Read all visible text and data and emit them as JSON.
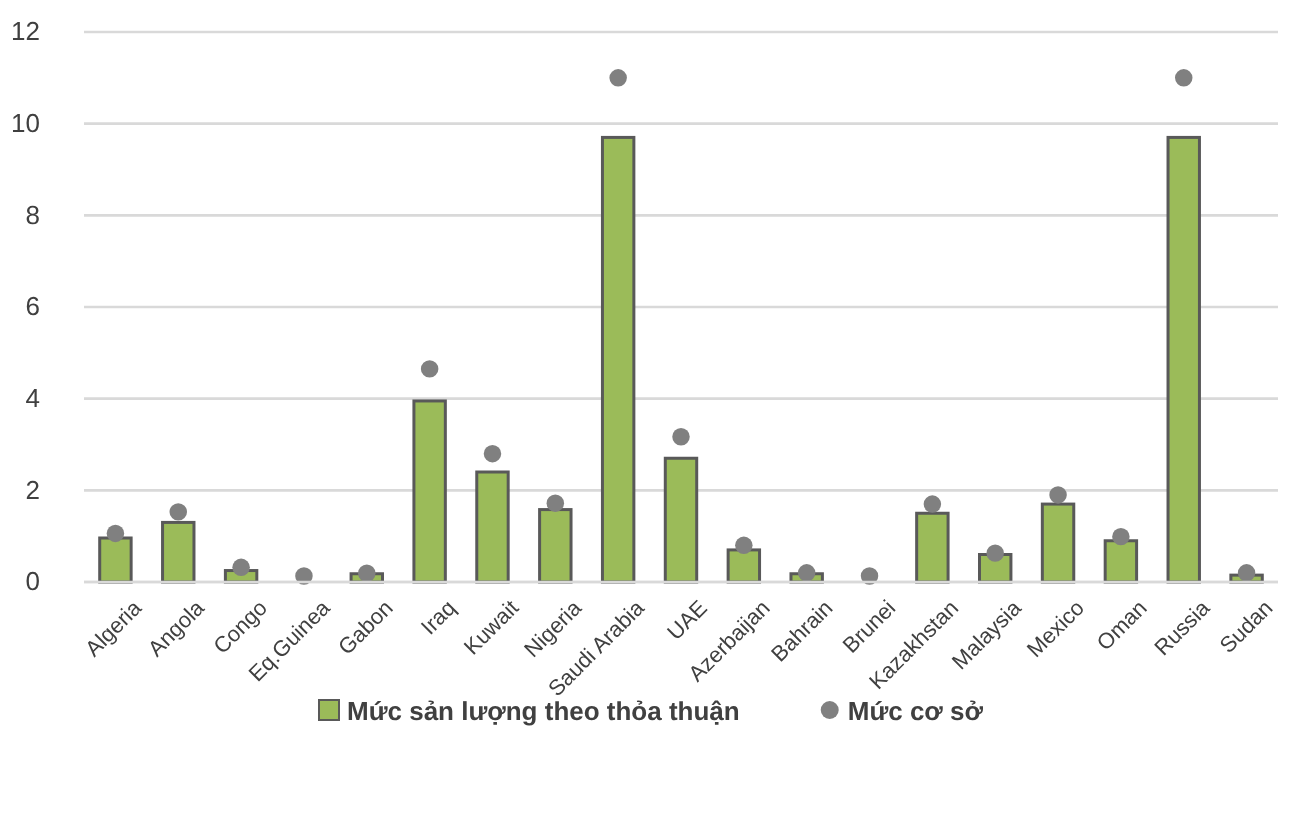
{
  "chart_data": {
    "type": "bar",
    "categories": [
      "Algeria",
      "Angola",
      "Congo",
      "Eq.Guinea",
      "Gabon",
      "Iraq",
      "Kuwait",
      "Nigeria",
      "Saudi Arabia",
      "UAE",
      "Azerbaijan",
      "Bahrain",
      "Brunei",
      "Kazakhstan",
      "Malaysia",
      "Mexico",
      "Oman",
      "Russia",
      "Sudan"
    ],
    "series": [
      {
        "name": "Mức sản lượng theo thỏa thuận",
        "color": "#9bbb59",
        "values": [
          0.96,
          1.3,
          0.25,
          null,
          0.18,
          3.95,
          2.4,
          1.58,
          9.7,
          2.7,
          0.7,
          0.18,
          null,
          1.5,
          0.6,
          1.7,
          0.9,
          9.7,
          0.15
        ]
      },
      {
        "name": "Mức cơ sở",
        "type": "scatter",
        "color": "#808080",
        "values": [
          1.06,
          1.53,
          0.32,
          0.13,
          0.19,
          4.65,
          2.8,
          1.72,
          11,
          3.17,
          0.8,
          0.2,
          0.13,
          1.7,
          0.63,
          1.9,
          0.99,
          11,
          0.2
        ]
      }
    ],
    "ylim": [
      0,
      12
    ],
    "yticks": [
      0,
      2,
      4,
      6,
      8,
      10,
      12
    ],
    "grid": "y",
    "legend": "bottom",
    "marker": "circle"
  }
}
